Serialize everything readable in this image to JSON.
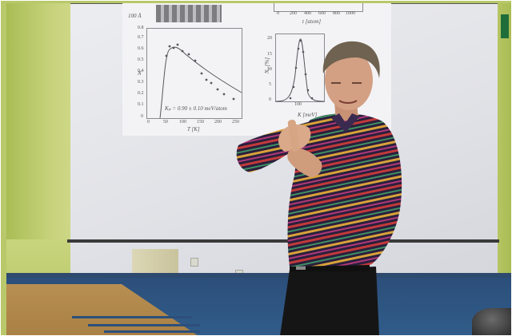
{
  "projection": {
    "left_plot": {
      "y_label": "N",
      "x_label": "T [K]",
      "annotation": "Kₚ = 0.90 ± 0.10 meV/atom",
      "x_ticks": [
        "0",
        "50",
        "100",
        "150",
        "200",
        "250"
      ],
      "y_ticks": [
        "0",
        "0.1",
        "0.2",
        "0.3",
        "0.4",
        "0.5",
        "0.6",
        "0.7",
        "0.8"
      ]
    },
    "right_plot": {
      "y_label": "N₂ [%]",
      "x_label": "K [meV]",
      "x_tick": "100",
      "y_ticks": [
        "0",
        "5",
        "10",
        "15",
        "20"
      ]
    },
    "top_plot": {
      "x_label": "t [atom]",
      "x_ticks": [
        "0",
        "200",
        "400",
        "600",
        "800",
        "1000"
      ]
    },
    "corner_label": "100 Å"
  },
  "colors": {
    "wall": "#b8c86a",
    "screen": "#e4e5ea",
    "floor": "#2c4f7a",
    "shirt_base": "#2a1f3d",
    "trousers": "#151515"
  }
}
